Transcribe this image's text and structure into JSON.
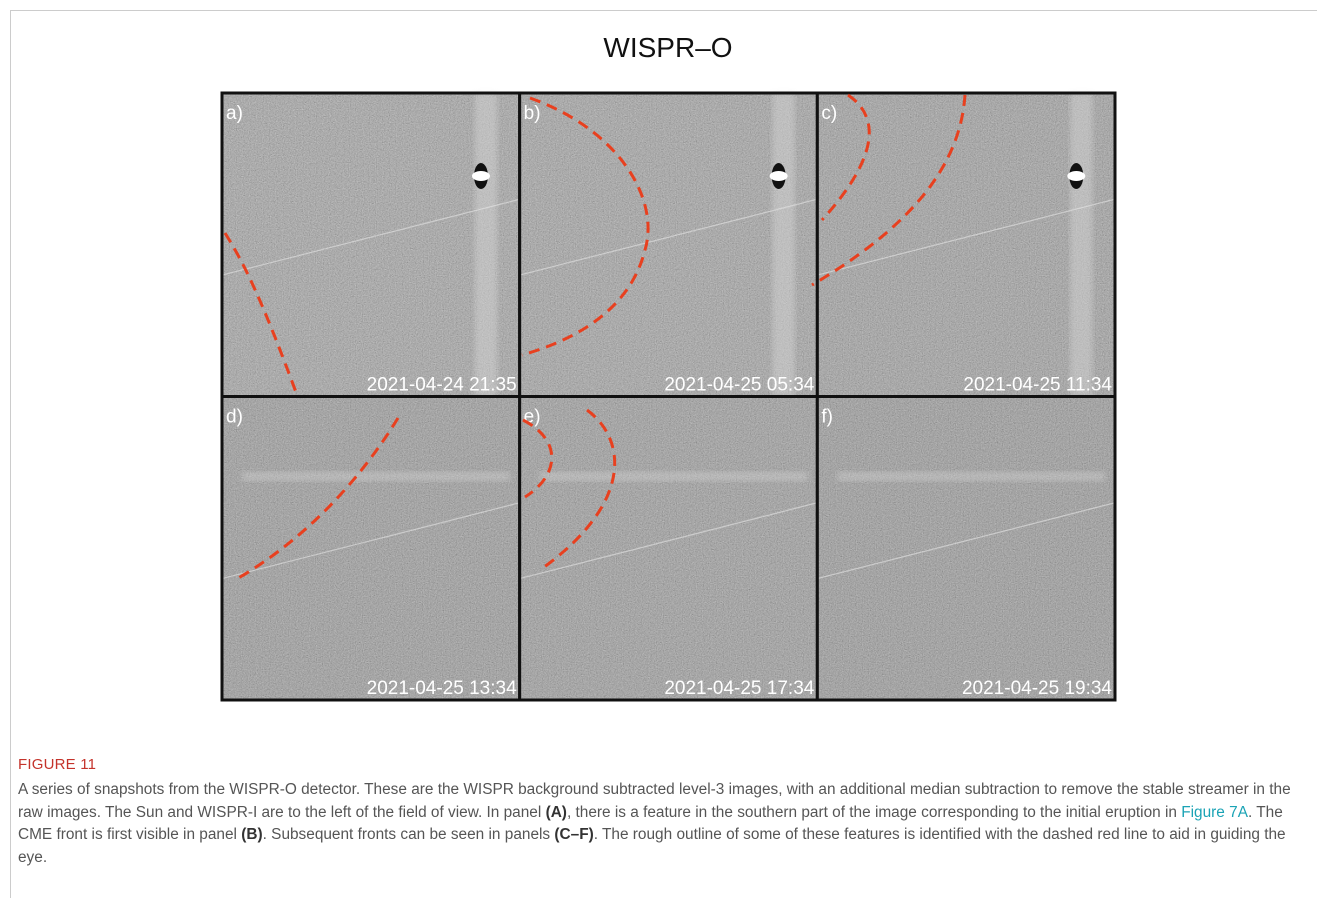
{
  "figure": {
    "title": "WISPR–O",
    "panels": [
      {
        "label": "a)",
        "time": "2021-04-24 21:35"
      },
      {
        "label": "b)",
        "time": "2021-04-25 05:34"
      },
      {
        "label": "c)",
        "time": "2021-04-25 11:34"
      },
      {
        "label": "d)",
        "time": "2021-04-25 13:34"
      },
      {
        "label": "e)",
        "time": "2021-04-25 17:34"
      },
      {
        "label": "f)",
        "time": "2021-04-25 19:34"
      }
    ],
    "figure_label": "FIGURE 11",
    "caption": [
      "A series of snapshots from the WISPR-O detector. These are the WISPR background subtracted level-3 images, with an additional median subtraction to remove the stable streamer in the raw images. The Sun and WISPR-I are to the left of the field of view. In panel ",
      "(A)",
      ", there is a feature in the southern part of the image corresponding to the initial eruption in ",
      "Figure 7A",
      ". The CME front is first visible in panel ",
      "(B)",
      ". Subsequent fronts can be seen in panels ",
      "(C–F)",
      ". The rough outline of some of these features is identified with the dashed red line to aid in guiding the eye."
    ]
  }
}
